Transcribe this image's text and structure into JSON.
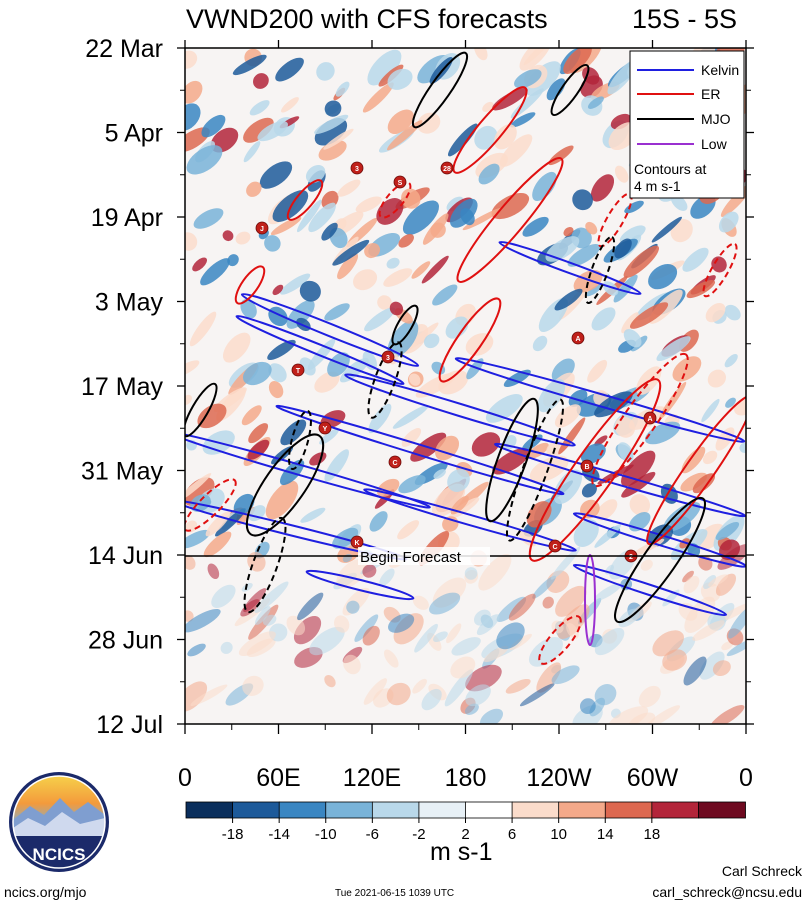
{
  "chart_data": {
    "type": "heatmap",
    "title": "VWND200 with CFS forecasts",
    "region": "15S - 5S",
    "variable": "VWND200",
    "x_ticks": [
      "0",
      "60E",
      "120E",
      "180",
      "120W",
      "60W",
      "0"
    ],
    "x_range_deg": [
      0,
      360
    ],
    "y_ticks": [
      "22 Mar",
      "5 Apr",
      "19 Apr",
      "3 May",
      "17 May",
      "31 May",
      "14 Jun",
      "28 Jun",
      "12 Jul"
    ],
    "y_tick_day_offsets": [
      0,
      14,
      28,
      42,
      56,
      70,
      84,
      98,
      112
    ],
    "forecast_line": {
      "label": "Begin Forecast",
      "day_offset": 84
    },
    "legend": {
      "entries": [
        {
          "name": "Kelvin",
          "color": "#1f1fe0"
        },
        {
          "name": "ER",
          "color": "#e01010"
        },
        {
          "name": "MJO",
          "color": "#000000"
        },
        {
          "name": "Low",
          "color": "#9a30d0"
        }
      ],
      "contour_note_line1": "Contours at",
      "contour_note_line2": "4 m s-1",
      "placement": "top-right"
    },
    "colorbar": {
      "levels": [
        "-18",
        "-14",
        "-10",
        "-6",
        "-2",
        "2",
        "6",
        "10",
        "14",
        "18"
      ],
      "colors": [
        "#0a2e5c",
        "#1d5a9a",
        "#3a86c2",
        "#79b3d8",
        "#b9d8ea",
        "#e7f0f6",
        "#ffffff",
        "#fbdccb",
        "#f4a98a",
        "#dd6850",
        "#b3253a",
        "#6e0a20"
      ],
      "units": "m s-1"
    },
    "named_systems": [
      "J",
      "3",
      "S",
      "28",
      "A",
      "T",
      "3",
      "Y",
      "C",
      "B",
      "A",
      "K",
      "C",
      "2"
    ]
  },
  "footer": {
    "logo_text": "NCICS",
    "website": "ncics.org/mjo",
    "timestamp": "Tue 2021-06-15 1039 UTC",
    "author": "Carl Schreck",
    "email": "carl_schreck@ncsu.edu"
  }
}
